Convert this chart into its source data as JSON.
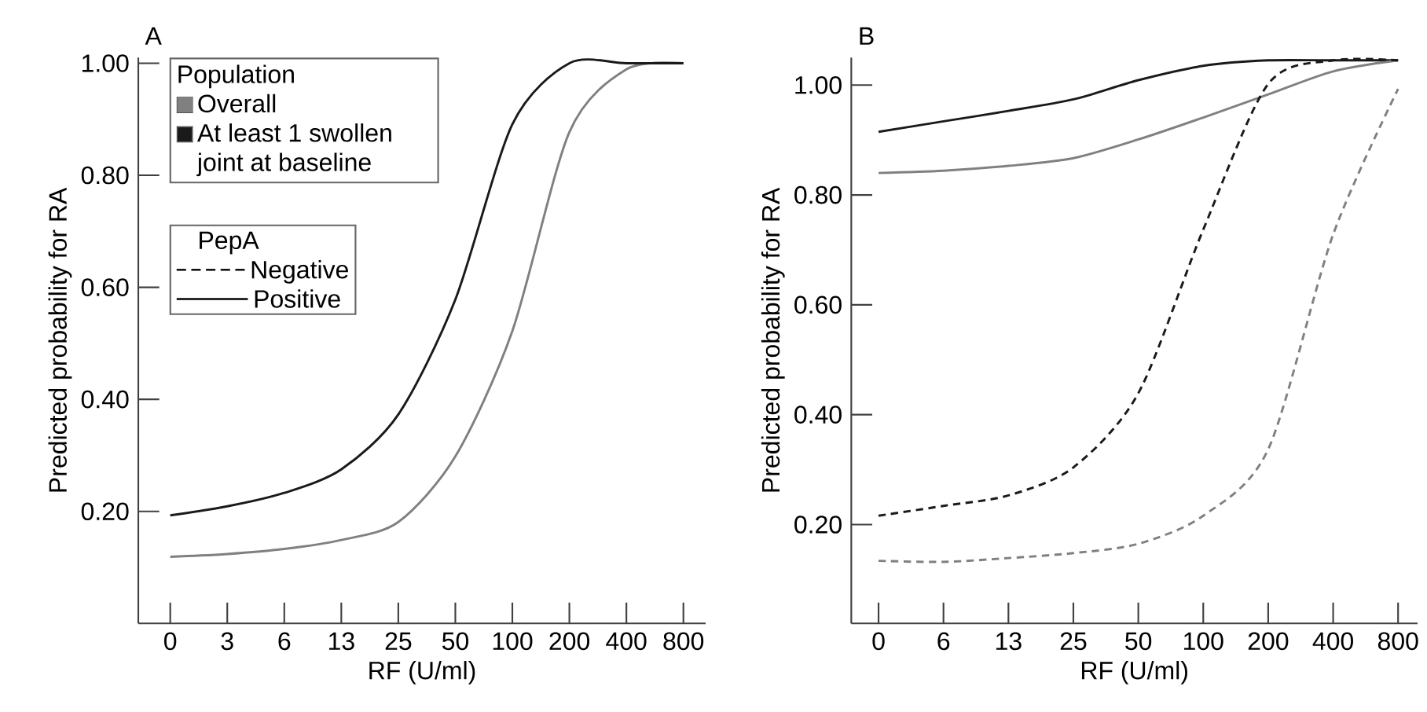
{
  "chart_data": [
    {
      "type": "line",
      "title": "A",
      "xlabel": "RF (U/ml)",
      "ylabel": "Predicted probability for RA",
      "categories": [
        "0",
        "3",
        "6",
        "13",
        "25",
        "50",
        "100",
        "200",
        "400",
        "800"
      ],
      "ylim": [
        0,
        1.01
      ],
      "yticks": [
        {
          "value": 0.2,
          "label": "0.20"
        },
        {
          "value": 0.4,
          "label": "0.40"
        },
        {
          "value": 0.6,
          "label": "0.60"
        },
        {
          "value": 0.8,
          "label": "0.80"
        },
        {
          "value": 1.0,
          "label": "1.00"
        }
      ],
      "legend": "top left",
      "legend_title": "Population",
      "annotations": [
        "PepA",
        "Negative",
        "Positive"
      ],
      "series": [
        {
          "name": "Overall",
          "color": "#808080",
          "line_style": "solid",
          "values": [
            0.119,
            0.124,
            0.133,
            0.149,
            0.181,
            0.298,
            0.522,
            0.877,
            0.989,
            1.0
          ]
        },
        {
          "name": "At least 1 swollen joint at baseline",
          "color": "#1a1a1a",
          "line_style": "solid",
          "values": [
            0.193,
            0.209,
            0.233,
            0.275,
            0.373,
            0.578,
            0.891,
            1.0,
            1.0,
            1.0
          ]
        }
      ]
    },
    {
      "type": "line",
      "title": "B",
      "xlabel": "RF (U/ml)",
      "ylabel": "Predicted probability for RA",
      "categories": [
        "0",
        "6",
        "13",
        "25",
        "50",
        "100",
        "200",
        "400",
        "800"
      ],
      "ylim": [
        0.02,
        1.05
      ],
      "yticks": [
        {
          "value": 0.2,
          "label": "0.20"
        },
        {
          "value": 0.4,
          "label": "0.40"
        },
        {
          "value": 0.6,
          "label": "0.60"
        },
        {
          "value": 0.8,
          "label": "0.80"
        },
        {
          "value": 1.0,
          "label": "1.00"
        }
      ],
      "series": [
        {
          "color": "#1a1a1a",
          "line_style": "solid",
          "values": [
            0.915,
            0.934,
            0.953,
            0.974,
            1.009,
            1.035,
            1.045,
            1.045,
            1.045
          ]
        },
        {
          "color": "#808080",
          "line_style": "solid",
          "values": [
            0.84,
            0.844,
            0.853,
            0.867,
            0.901,
            0.941,
            0.983,
            1.025,
            1.045
          ]
        },
        {
          "color": "#1a1a1a",
          "line_style": "dashed",
          "values": [
            0.216,
            0.234,
            0.253,
            0.304,
            0.439,
            0.737,
            1.002,
            1.045,
            1.045
          ]
        },
        {
          "color": "#808080",
          "line_style": "dashed",
          "values": [
            0.134,
            0.132,
            0.139,
            0.148,
            0.165,
            0.216,
            0.337,
            0.728,
            0.993
          ]
        }
      ]
    }
  ]
}
